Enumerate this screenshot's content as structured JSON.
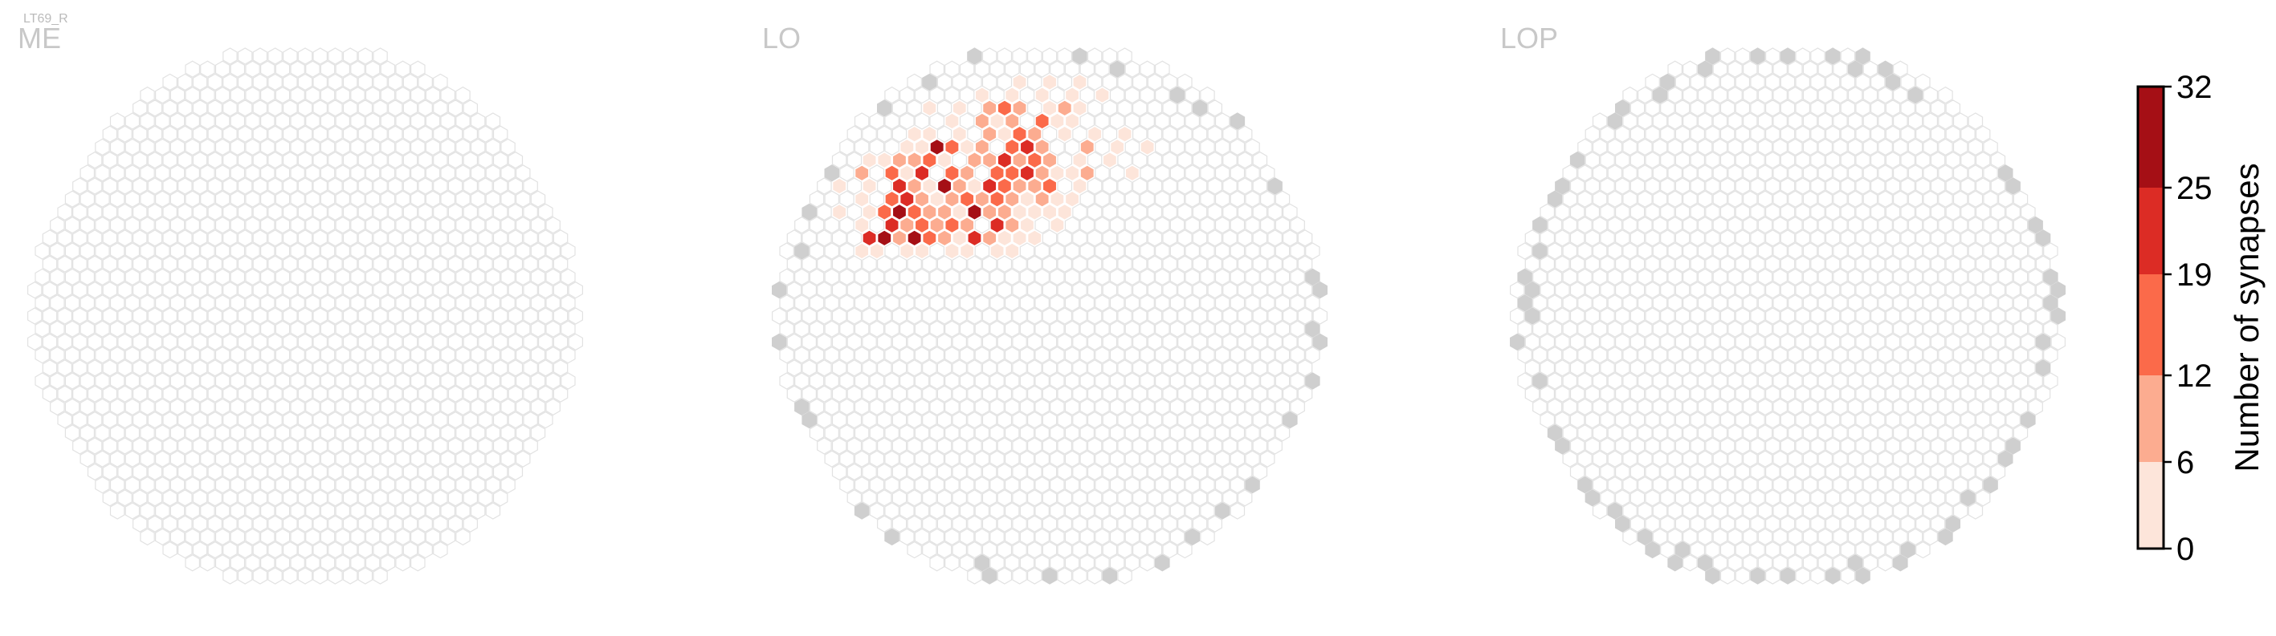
{
  "title": "LT69_R",
  "panels": [
    {
      "label": "ME"
    },
    {
      "label": "LO",
      "cells": [
        [
          -2,
          -18,
          3
        ],
        [
          0,
          -18,
          2
        ],
        [
          2,
          -18,
          3
        ],
        [
          -5,
          -17,
          2
        ],
        [
          -3,
          -17,
          4
        ],
        [
          -1,
          -17,
          3
        ],
        [
          1,
          -17,
          5
        ],
        [
          3,
          -17,
          2
        ],
        [
          -8,
          -16,
          1
        ],
        [
          -6,
          -16,
          3
        ],
        [
          -4,
          -16,
          8
        ],
        [
          -3,
          -16,
          14
        ],
        [
          -2,
          -16,
          9
        ],
        [
          0,
          -16,
          4
        ],
        [
          1,
          -16,
          10
        ],
        [
          2,
          -16,
          3
        ],
        [
          -7,
          -15,
          4
        ],
        [
          -5,
          -15,
          8
        ],
        [
          -4,
          -15,
          3
        ],
        [
          -3,
          -15,
          10
        ],
        [
          -1,
          -15,
          15
        ],
        [
          0,
          -15,
          6
        ],
        [
          1,
          -15,
          2
        ],
        [
          -9,
          -14,
          2
        ],
        [
          -8,
          -14,
          3
        ],
        [
          -6,
          -14,
          6
        ],
        [
          -4,
          -14,
          11
        ],
        [
          -3,
          -14,
          4
        ],
        [
          -2,
          -14,
          17
        ],
        [
          -1,
          -14,
          9
        ],
        [
          1,
          -14,
          3
        ],
        [
          3,
          -14,
          5
        ],
        [
          5,
          -14,
          2
        ],
        [
          -10,
          -13,
          2
        ],
        [
          -9,
          -13,
          4
        ],
        [
          -8,
          -13,
          30
        ],
        [
          -7,
          -13,
          13
        ],
        [
          -6,
          -13,
          3
        ],
        [
          -5,
          -13,
          9
        ],
        [
          -3,
          -13,
          14
        ],
        [
          -2,
          -13,
          20
        ],
        [
          -1,
          -13,
          8
        ],
        [
          2,
          -13,
          12
        ],
        [
          4,
          -13,
          3
        ],
        [
          6,
          -13,
          4
        ],
        [
          -12,
          -12,
          2
        ],
        [
          -11,
          -12,
          4
        ],
        [
          -10,
          -12,
          12
        ],
        [
          -9,
          -12,
          7
        ],
        [
          -8,
          -12,
          16
        ],
        [
          -7,
          -12,
          5
        ],
        [
          -5,
          -12,
          8
        ],
        [
          -4,
          -12,
          10
        ],
        [
          -3,
          -12,
          23
        ],
        [
          -2,
          -12,
          11
        ],
        [
          -1,
          -12,
          14
        ],
        [
          0,
          -12,
          8
        ],
        [
          2,
          -12,
          4
        ],
        [
          4,
          -12,
          5
        ],
        [
          -13,
          -11,
          8
        ],
        [
          -11,
          -11,
          18
        ],
        [
          -10,
          -11,
          6
        ],
        [
          -9,
          -11,
          22
        ],
        [
          -7,
          -11,
          14
        ],
        [
          -6,
          -11,
          9
        ],
        [
          -4,
          -11,
          17
        ],
        [
          -3,
          -11,
          13
        ],
        [
          -2,
          -11,
          20
        ],
        [
          -1,
          -11,
          9
        ],
        [
          0,
          -11,
          6
        ],
        [
          1,
          -11,
          4
        ],
        [
          2,
          -11,
          10
        ],
        [
          5,
          -11,
          3
        ],
        [
          -14,
          -10,
          2
        ],
        [
          -12,
          -10,
          3
        ],
        [
          -10,
          -10,
          20
        ],
        [
          -9,
          -10,
          9
        ],
        [
          -8,
          -10,
          5
        ],
        [
          -7,
          -10,
          26
        ],
        [
          -6,
          -10,
          12
        ],
        [
          -5,
          -10,
          4
        ],
        [
          -4,
          -10,
          21
        ],
        [
          -3,
          -10,
          15
        ],
        [
          -2,
          -10,
          11
        ],
        [
          -1,
          -10,
          7
        ],
        [
          0,
          -10,
          13
        ],
        [
          2,
          -10,
          2
        ],
        [
          -13,
          -9,
          4
        ],
        [
          -11,
          -9,
          15
        ],
        [
          -10,
          -9,
          22
        ],
        [
          -9,
          -9,
          12
        ],
        [
          -8,
          -9,
          6
        ],
        [
          -7,
          -9,
          9
        ],
        [
          -6,
          -9,
          18
        ],
        [
          -5,
          -9,
          11
        ],
        [
          -4,
          -9,
          14
        ],
        [
          -3,
          -9,
          8
        ],
        [
          -2,
          -9,
          6
        ],
        [
          -1,
          -9,
          10
        ],
        [
          0,
          -9,
          3
        ],
        [
          1,
          -9,
          5
        ],
        [
          -14,
          -8,
          3
        ],
        [
          -12,
          -8,
          4
        ],
        [
          -11,
          -8,
          19
        ],
        [
          -10,
          -8,
          30
        ],
        [
          -9,
          -8,
          14
        ],
        [
          -8,
          -8,
          10
        ],
        [
          -7,
          -8,
          12
        ],
        [
          -6,
          -8,
          4
        ],
        [
          -5,
          -8,
          26
        ],
        [
          -4,
          -8,
          7
        ],
        [
          -3,
          -8,
          12
        ],
        [
          -2,
          -8,
          5
        ],
        [
          -1,
          -8,
          3
        ],
        [
          0,
          -8,
          2
        ],
        [
          1,
          -8,
          4
        ],
        [
          -13,
          -7,
          5
        ],
        [
          -11,
          -7,
          20
        ],
        [
          -10,
          -7,
          10
        ],
        [
          -9,
          -7,
          16
        ],
        [
          -8,
          -7,
          7
        ],
        [
          -7,
          -7,
          13
        ],
        [
          -6,
          -7,
          9
        ],
        [
          -4,
          -7,
          24
        ],
        [
          -3,
          -7,
          10
        ],
        [
          -2,
          -7,
          4
        ],
        [
          0,
          -7,
          3
        ],
        [
          -12,
          -6,
          24
        ],
        [
          -11,
          -6,
          28
        ],
        [
          -10,
          -6,
          9
        ],
        [
          -9,
          -6,
          31
        ],
        [
          -8,
          -6,
          18
        ],
        [
          -7,
          -6,
          12
        ],
        [
          -6,
          -6,
          3
        ],
        [
          -5,
          -6,
          20
        ],
        [
          -4,
          -6,
          8
        ],
        [
          -3,
          -6,
          2
        ],
        [
          -2,
          -6,
          5
        ],
        [
          -1,
          -6,
          2
        ],
        [
          -13,
          -5,
          3
        ],
        [
          -12,
          -5,
          2
        ],
        [
          -10,
          -5,
          5
        ],
        [
          -9,
          -5,
          6
        ],
        [
          -7,
          -5,
          3
        ],
        [
          -6,
          -5,
          2
        ],
        [
          -4,
          -5,
          3
        ],
        [
          -3,
          -5,
          2
        ]
      ]
    },
    {
      "label": "LOP"
    }
  ],
  "colorbar": {
    "label": "Number of synapses",
    "ticks": [
      0,
      6,
      12,
      19,
      25,
      32
    ],
    "colors": [
      "#fde5da",
      "#fcac90",
      "#fb6a4a",
      "#dc2c25",
      "#a50f15"
    ]
  }
}
